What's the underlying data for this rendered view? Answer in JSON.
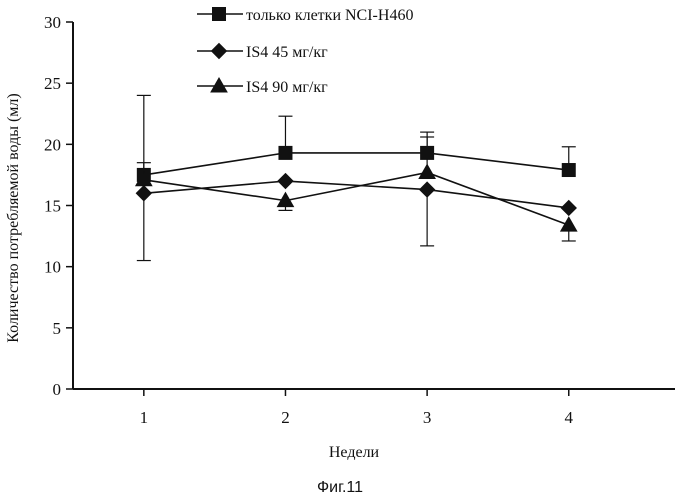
{
  "figure_caption": "Фиг.11",
  "chart_data": {
    "type": "line",
    "xlabel": "Недели",
    "ylabel": "Количество потребляемой воды (мл)",
    "x": [
      1,
      2,
      3,
      4
    ],
    "xticks": [
      "1",
      "2",
      "3",
      "4"
    ],
    "xlim": [
      0.5,
      4.75
    ],
    "ylim": [
      0,
      30
    ],
    "yticks": [
      "0",
      "5",
      "10",
      "15",
      "20",
      "25",
      "30"
    ],
    "grid": false,
    "legend_position": "top",
    "series": [
      {
        "name": "только клетки NCI-H460",
        "marker": "square",
        "values": [
          17.5,
          19.3,
          19.3,
          17.9
        ],
        "err_low": [
          17.5,
          19.3,
          19.3,
          17.9
        ],
        "err_high": [
          18.5,
          22.3,
          20.6,
          19.8
        ]
      },
      {
        "name": "IS4 45 мг/кг",
        "marker": "diamond",
        "values": [
          16.0,
          17.0,
          16.3,
          14.8
        ],
        "err_low": [
          10.5,
          17.0,
          11.7,
          14.8
        ],
        "err_high": [
          24.0,
          17.0,
          16.3,
          14.8
        ]
      },
      {
        "name": "IS4 90 мг/кг",
        "marker": "triangle",
        "values": [
          17.1,
          15.4,
          17.7,
          13.4
        ],
        "err_low": [
          17.1,
          14.6,
          17.7,
          12.1
        ],
        "err_high": [
          17.1,
          15.4,
          21.0,
          13.4
        ]
      }
    ]
  }
}
